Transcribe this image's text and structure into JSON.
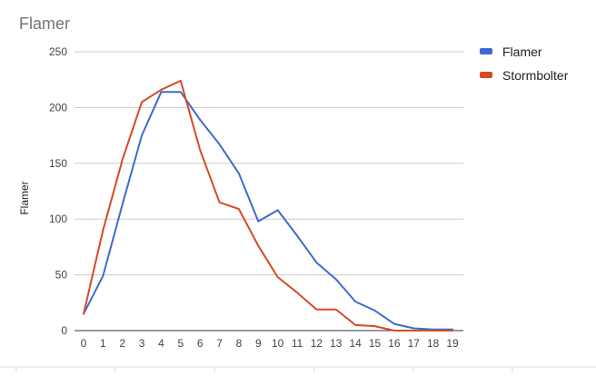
{
  "chart_data": {
    "type": "line",
    "title": "Flamer",
    "xlabel": "",
    "ylabel": "Flamer",
    "x": [
      0,
      1,
      2,
      3,
      4,
      5,
      6,
      7,
      8,
      9,
      10,
      11,
      12,
      13,
      14,
      15,
      16,
      17,
      18,
      19
    ],
    "ylim": [
      0,
      250
    ],
    "yticks": [
      0,
      50,
      100,
      150,
      200,
      250
    ],
    "grid": true,
    "legend_position": "right",
    "series": [
      {
        "name": "Flamer",
        "color": "#3d6bcc",
        "values": [
          15,
          49,
          113,
          175,
          214,
          214,
          189,
          167,
          141,
          98,
          108,
          85,
          61,
          46,
          26,
          18,
          6,
          2,
          1,
          1
        ]
      },
      {
        "name": "Stormbolter",
        "color": "#d54a26",
        "values": [
          15,
          90,
          153,
          205,
          216,
          224,
          162,
          115,
          109,
          76,
          48,
          34,
          19,
          19,
          5,
          4,
          0,
          0,
          0,
          0
        ]
      }
    ]
  }
}
